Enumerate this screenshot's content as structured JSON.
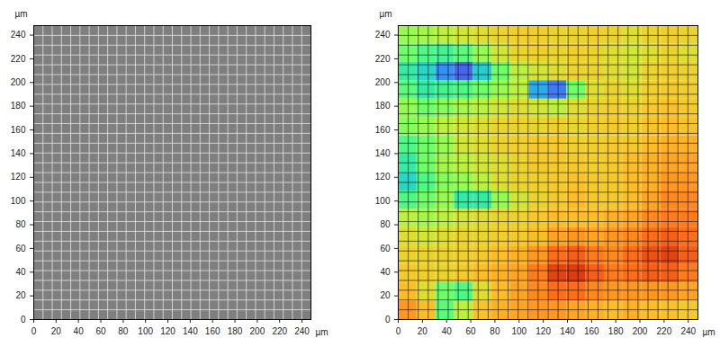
{
  "chart_data": [
    {
      "type": "image",
      "color": "#7f7f7f",
      "xlabel": "µm",
      "ylabel": "µm",
      "xlim": [
        0,
        248
      ],
      "ylim": [
        0,
        248
      ],
      "xticks": [
        0,
        20,
        40,
        60,
        80,
        100,
        120,
        140,
        160,
        180,
        200,
        220,
        240
      ],
      "yticks": [
        0,
        20,
        40,
        60,
        80,
        100,
        120,
        140,
        160,
        180,
        200,
        220,
        240
      ]
    },
    {
      "type": "heatmap",
      "color": "turbo",
      "xlabel": "µm",
      "ylabel": "µm",
      "xlim": [
        0,
        248
      ],
      "ylim": [
        0,
        248
      ],
      "xticks": [
        0,
        20,
        40,
        60,
        80,
        100,
        120,
        140,
        160,
        180,
        200,
        220,
        240
      ],
      "yticks": [
        0,
        20,
        40,
        60,
        80,
        100,
        120,
        140,
        160,
        180,
        200,
        220,
        240
      ],
      "color_range": [
        0,
        1
      ],
      "xbins": [
        0,
        15.5,
        31,
        46.5,
        62,
        77.5,
        93,
        108.5,
        124,
        139.5,
        155,
        170.5,
        186,
        201.5,
        217,
        232.5,
        248
      ],
      "ybins": [
        248,
        232.5,
        217,
        201.5,
        186,
        170.5,
        155,
        139.5,
        124,
        108.5,
        93,
        77.5,
        62,
        46.5,
        31,
        15.5,
        0
      ],
      "cells": [
        [
          0.5,
          0.52,
          0.55,
          0.58,
          0.6,
          0.62,
          0.63,
          0.63,
          0.62,
          0.62,
          0.63,
          0.62,
          0.6,
          0.62,
          0.63,
          0.62
        ],
        [
          0.45,
          0.4,
          0.38,
          0.42,
          0.5,
          0.58,
          0.62,
          0.63,
          0.62,
          0.63,
          0.62,
          0.6,
          0.58,
          0.6,
          0.62,
          0.6
        ],
        [
          0.35,
          0.3,
          0.18,
          0.12,
          0.28,
          0.45,
          0.55,
          0.58,
          0.6,
          0.62,
          0.62,
          0.6,
          0.58,
          0.62,
          0.63,
          0.62
        ],
        [
          0.42,
          0.35,
          0.38,
          0.4,
          0.45,
          0.5,
          0.55,
          0.22,
          0.15,
          0.45,
          0.6,
          0.62,
          0.6,
          0.63,
          0.64,
          0.63
        ],
        [
          0.5,
          0.45,
          0.48,
          0.52,
          0.55,
          0.58,
          0.6,
          0.58,
          0.55,
          0.6,
          0.62,
          0.63,
          0.62,
          0.64,
          0.65,
          0.64
        ],
        [
          0.48,
          0.5,
          0.55,
          0.58,
          0.6,
          0.62,
          0.62,
          0.62,
          0.63,
          0.62,
          0.63,
          0.64,
          0.63,
          0.65,
          0.66,
          0.65
        ],
        [
          0.4,
          0.45,
          0.5,
          0.58,
          0.6,
          0.62,
          0.63,
          0.64,
          0.64,
          0.63,
          0.63,
          0.64,
          0.64,
          0.66,
          0.68,
          0.68
        ],
        [
          0.35,
          0.45,
          0.52,
          0.55,
          0.58,
          0.6,
          0.62,
          0.64,
          0.64,
          0.64,
          0.63,
          0.64,
          0.66,
          0.68,
          0.7,
          0.7
        ],
        [
          0.3,
          0.4,
          0.48,
          0.5,
          0.55,
          0.6,
          0.62,
          0.63,
          0.64,
          0.65,
          0.64,
          0.64,
          0.66,
          0.68,
          0.72,
          0.72
        ],
        [
          0.4,
          0.45,
          0.5,
          0.35,
          0.35,
          0.5,
          0.58,
          0.62,
          0.64,
          0.66,
          0.64,
          0.64,
          0.66,
          0.7,
          0.74,
          0.74
        ],
        [
          0.55,
          0.52,
          0.55,
          0.58,
          0.6,
          0.62,
          0.62,
          0.64,
          0.66,
          0.66,
          0.66,
          0.68,
          0.7,
          0.74,
          0.76,
          0.76
        ],
        [
          0.6,
          0.58,
          0.6,
          0.62,
          0.62,
          0.63,
          0.64,
          0.66,
          0.7,
          0.72,
          0.7,
          0.72,
          0.74,
          0.78,
          0.8,
          0.78
        ],
        [
          0.62,
          0.62,
          0.62,
          0.63,
          0.64,
          0.66,
          0.68,
          0.72,
          0.78,
          0.8,
          0.76,
          0.74,
          0.78,
          0.82,
          0.84,
          0.8
        ],
        [
          0.64,
          0.63,
          0.62,
          0.64,
          0.66,
          0.68,
          0.7,
          0.76,
          0.84,
          0.85,
          0.8,
          0.76,
          0.78,
          0.8,
          0.8,
          0.76
        ],
        [
          0.66,
          0.6,
          0.45,
          0.4,
          0.6,
          0.66,
          0.7,
          0.74,
          0.78,
          0.78,
          0.74,
          0.72,
          0.72,
          0.72,
          0.72,
          0.7
        ],
        [
          0.72,
          0.66,
          0.42,
          0.55,
          0.65,
          0.68,
          0.7,
          0.72,
          0.72,
          0.7,
          0.68,
          0.66,
          0.68,
          0.66,
          0.65,
          0.64
        ]
      ]
    }
  ]
}
